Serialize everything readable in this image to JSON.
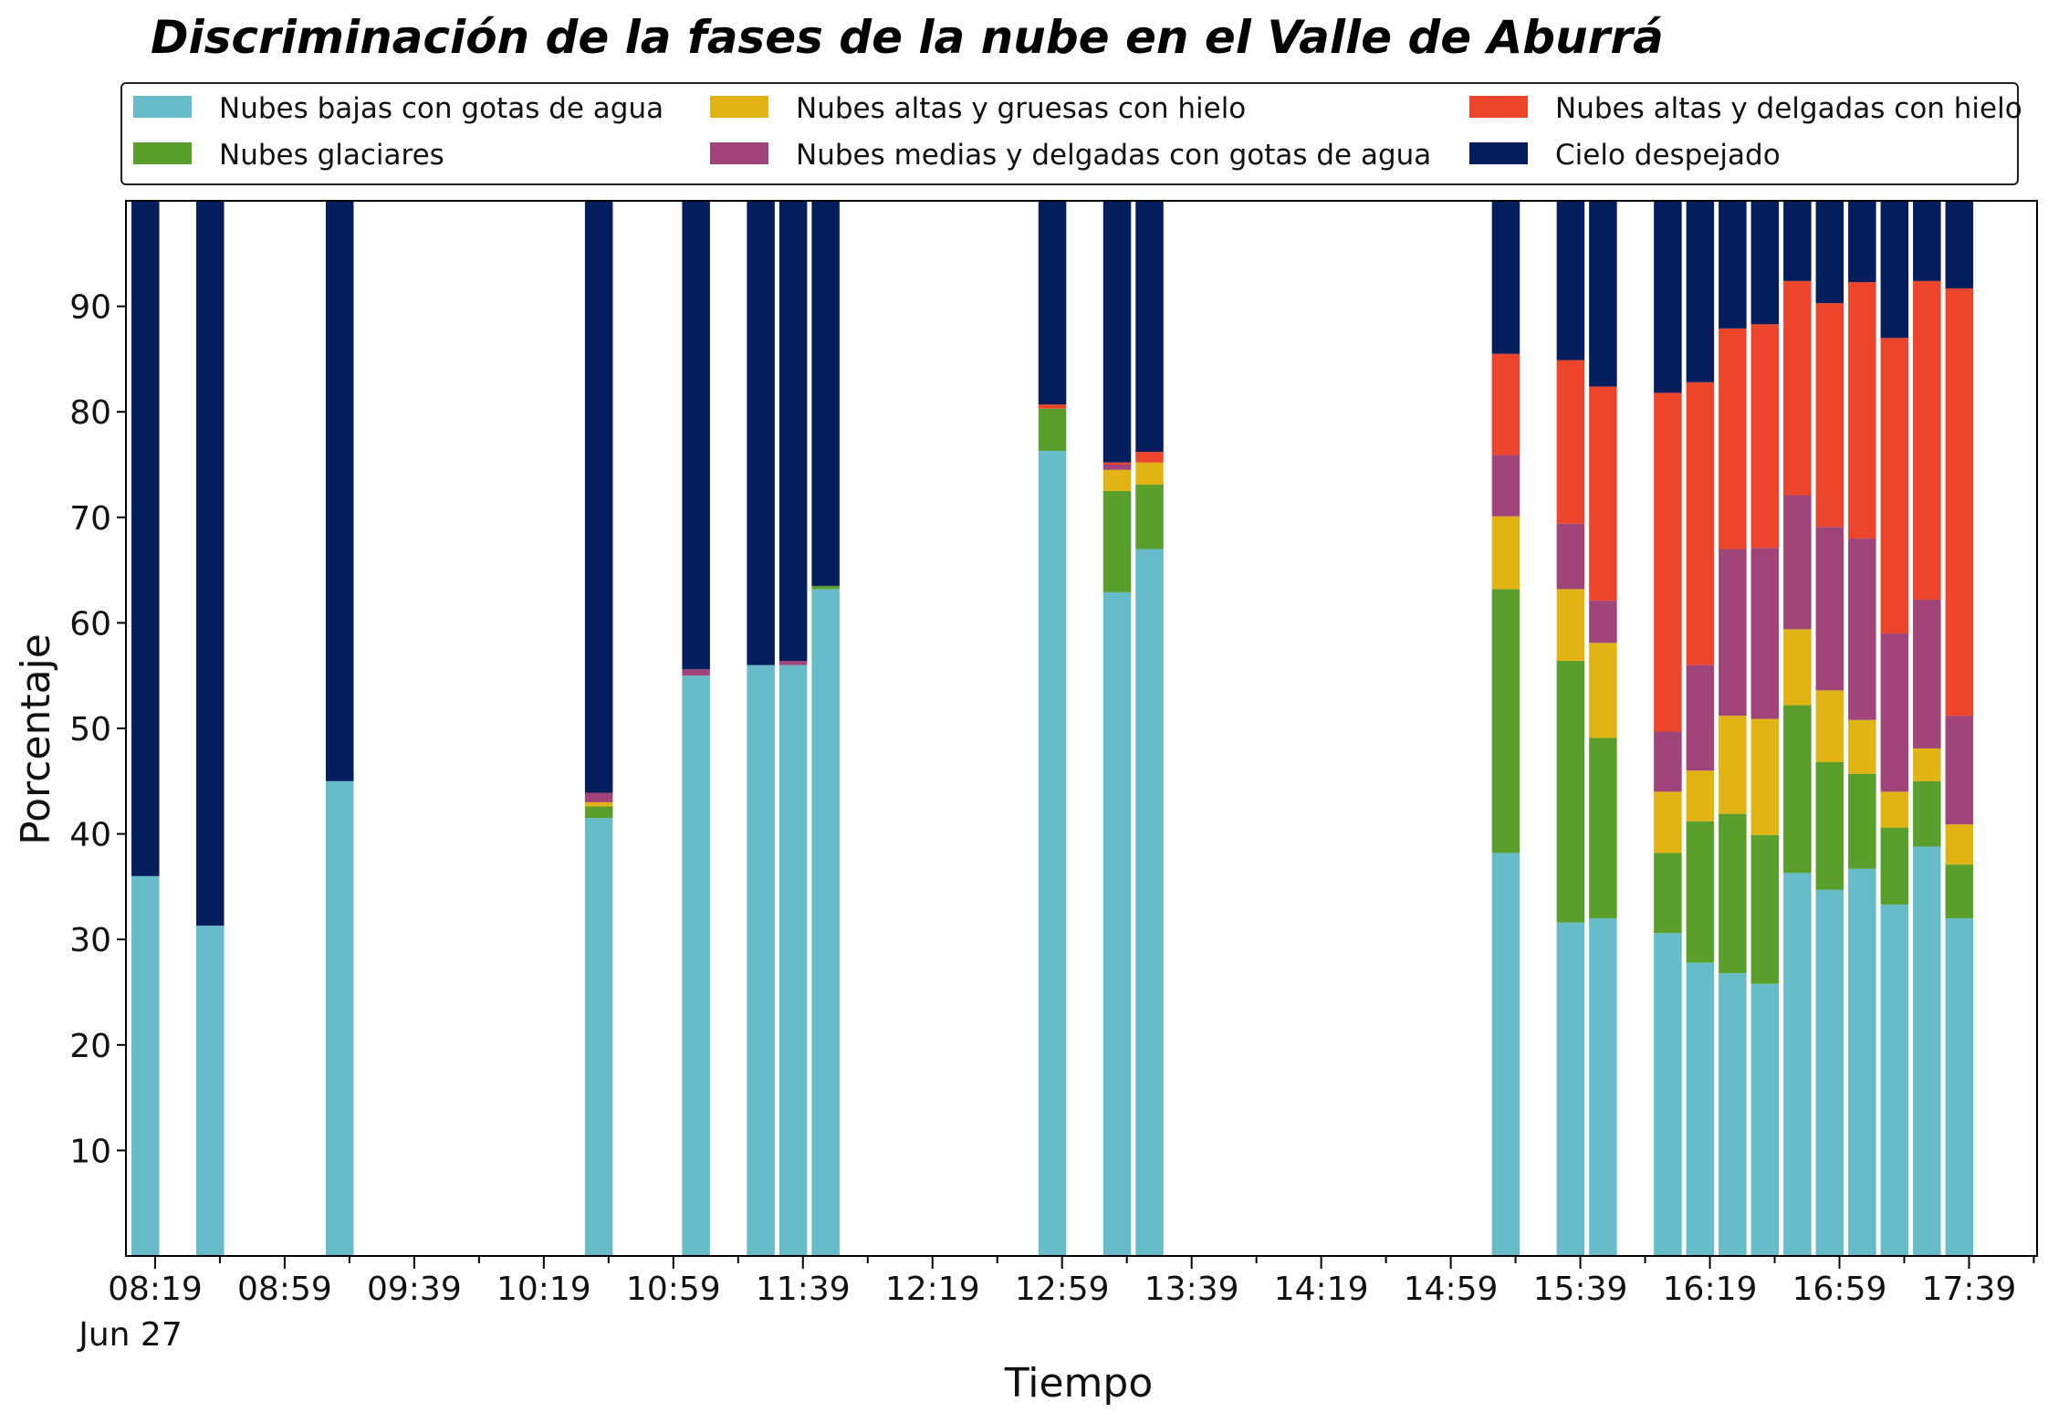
{
  "chart_data": {
    "type": "bar",
    "stacked": true,
    "title": "Discriminación de la fases de la nube en el Valle de Aburrá",
    "xlabel": "Tiempo",
    "ylabel": "Porcentaje",
    "ylim": [
      0,
      100
    ],
    "yticks": [
      10,
      20,
      30,
      40,
      50,
      60,
      70,
      80,
      90
    ],
    "xlim": [
      "08:10",
      "18:00"
    ],
    "date_label": "Jun 27",
    "xticks": [
      "08:19",
      "08:59",
      "09:39",
      "10:19",
      "10:59",
      "11:39",
      "12:19",
      "12:59",
      "13:39",
      "14:19",
      "14:59",
      "15:39",
      "16:19",
      "16:59",
      "17:39"
    ],
    "bar_width_minutes": 8.6,
    "grid": false,
    "legend": {
      "position": "top",
      "columns": 3
    },
    "x": [
      "08:16",
      "08:36",
      "09:16",
      "10:36",
      "11:06",
      "11:26",
      "11:36",
      "11:46",
      "12:56",
      "13:16",
      "13:26",
      "15:16",
      "15:36",
      "15:46",
      "16:06",
      "16:16",
      "16:26",
      "16:36",
      "16:46",
      "16:56",
      "17:06",
      "17:16",
      "17:26",
      "17:36"
    ],
    "series": [
      {
        "name": "Nubes bajas con gotas de agua",
        "color": "#66bdc9",
        "values": [
          36,
          31.3,
          45,
          41.5,
          55,
          56,
          56,
          63.2,
          76.3,
          62.9,
          67,
          38.2,
          31.6,
          32,
          30.6,
          27.8,
          26.8,
          25.8,
          36.3,
          34.7,
          36.7,
          33.3,
          38.8,
          32
        ]
      },
      {
        "name": "Nubes glaciares",
        "color": "#5a9e2c",
        "values": [
          0,
          0,
          0,
          1.1,
          0,
          0,
          0,
          0.3,
          4,
          9.6,
          6.1,
          25,
          24.8,
          17.1,
          7.6,
          13.4,
          15.1,
          14.1,
          15.9,
          12.1,
          9,
          7.3,
          6.2,
          5.1
        ]
      },
      {
        "name": "Nubes altas y gruesas con hielo",
        "color": "#e2b413",
        "values": [
          0,
          0,
          0,
          0.4,
          0,
          0,
          0,
          0,
          0,
          2,
          2.1,
          6.9,
          6.8,
          9,
          5.8,
          4.8,
          9.3,
          11,
          7.2,
          6.8,
          5.1,
          3.4,
          3.1,
          3.8
        ]
      },
      {
        "name": "Nubes medias y delgadas con gotas de agua",
        "color": "#a14479",
        "values": [
          0,
          0,
          0,
          0.9,
          0.6,
          0,
          0.4,
          0,
          0,
          0.5,
          0,
          5.8,
          6.2,
          4,
          5.7,
          10,
          15.8,
          16.2,
          12.7,
          15.5,
          17.2,
          15,
          14.1,
          10.3
        ]
      },
      {
        "name": "Nubes altas y delgadas con hielo",
        "color": "#ec452b",
        "values": [
          0,
          0,
          0,
          0,
          0,
          0,
          0,
          0,
          0.4,
          0.2,
          1,
          9.6,
          15.5,
          20.3,
          32.1,
          26.8,
          20.9,
          21.2,
          20.3,
          21.2,
          24.3,
          28,
          30.2,
          40.5
        ]
      },
      {
        "name": "Cielo despejado",
        "color": "#041e5d",
        "values": [
          64,
          68.7,
          55,
          56.1,
          44.4,
          44,
          43.6,
          36.5,
          19.3,
          24.8,
          23.8,
          14.5,
          15.1,
          17.6,
          18.2,
          17.2,
          12.1,
          11.7,
          7.6,
          9.7,
          7.7,
          13,
          7.6,
          8.3
        ]
      }
    ]
  }
}
